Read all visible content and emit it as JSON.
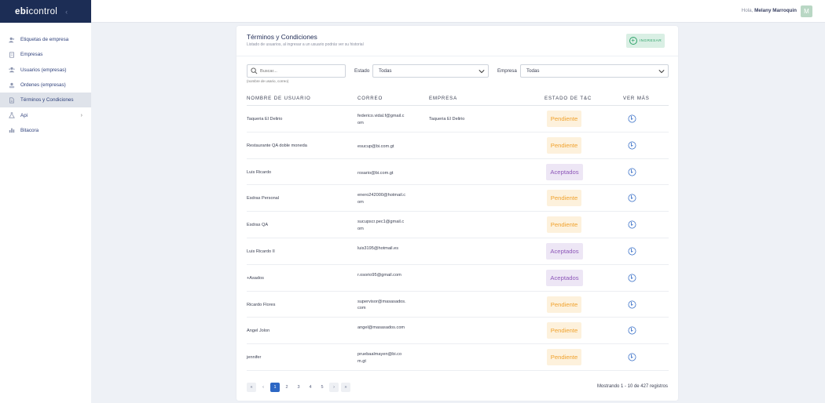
{
  "logo": {
    "ebi": "ebi",
    "rest": "control"
  },
  "sidebar": {
    "items": [
      {
        "label": "Etiquetas de empresa",
        "icon": "users-icon"
      },
      {
        "label": "Empresas",
        "icon": "building-icon"
      },
      {
        "label": "Usuarios (empresas)",
        "icon": "user-group-icon"
      },
      {
        "label": "Ordenes (empresas)",
        "icon": "network-icon"
      },
      {
        "label": "Términos y Condiciones",
        "icon": "document-icon"
      },
      {
        "label": "Api",
        "icon": "flask-icon"
      },
      {
        "label": "Bitacora",
        "icon": "chart-icon"
      }
    ]
  },
  "header": {
    "greeting": "Hola,",
    "user_name": "Melany Marroquin",
    "avatar_letter": "M"
  },
  "card": {
    "title": "Términos y Condiciones",
    "subtitle": "Listado de usuarios, al ingresar a un usuario podrás ver su historial",
    "add_button": "INGRESAR"
  },
  "filters": {
    "search_placeholder": "Buscar...",
    "search_hint": "(nombre de usario, correo)",
    "estado_label": "Estado",
    "estado_value": "Todas",
    "empresa_label": "Empresa",
    "empresa_value": "Todas"
  },
  "table": {
    "headers": {
      "name": "NOMBRE DE USUARIO",
      "mail": "CORREO",
      "company": "EMPRESA",
      "status": "ESTADO DE T&C",
      "more": "VER MÁS"
    },
    "rows": [
      {
        "name": "Taqueria El Delirio",
        "mail": "federico.vidal.f@gmail.com",
        "company": "Taqueria El Delirio",
        "status": "Pendiente",
        "type": "pend"
      },
      {
        "name": "Restaurante QA doble moneda",
        "mail": "esucup@bi.com.gt",
        "company": "",
        "status": "Pendiente",
        "type": "pend"
      },
      {
        "name": "Luis Ricardo",
        "mail": "rosario@bi.com.gt",
        "company": "",
        "status": "Aceptados",
        "type": "acep"
      },
      {
        "name": "Esdras Personal",
        "mail": "enero242000@hotmail.com",
        "company": "",
        "status": "Pendiente",
        "type": "pend"
      },
      {
        "name": "Esdras QA",
        "mail": "sucupscr.pec1@gmail.com",
        "company": "",
        "status": "Pendiente",
        "type": "pend"
      },
      {
        "name": "Luis Ricardo II",
        "mail": "luis3195@hotmail.es",
        "company": "",
        "status": "Aceptados",
        "type": "acep"
      },
      {
        "name": "+Asados",
        "mail": "r.osorio95@gmail.com",
        "company": "",
        "status": "Aceptados",
        "type": "acep"
      },
      {
        "name": "Ricardo Flores",
        "mail": "supervisor@masasados.com",
        "company": "",
        "status": "Pendiente",
        "type": "pend"
      },
      {
        "name": "Angel Jolon",
        "mail": "angel@masasados.com",
        "company": "",
        "status": "Pendiente",
        "type": "pend"
      },
      {
        "name": "jennifer",
        "mail": "pruebaalmayen@bi.com.gt",
        "company": "",
        "status": "Pendiente",
        "type": "pend"
      }
    ]
  },
  "pagination": {
    "first": "«",
    "prev": "‹",
    "pages": [
      "1",
      "2",
      "3",
      "4",
      "5"
    ],
    "next": "›",
    "last": "»",
    "current": "1",
    "summary": "Mostrando 1 - 10 de 427 registros"
  },
  "colors": {
    "sidebar_top": "#1c2d55",
    "pending": "#f0a22e",
    "accepted": "#8e58b9",
    "primary": "#2d67c4",
    "add": "#2fa36a"
  }
}
